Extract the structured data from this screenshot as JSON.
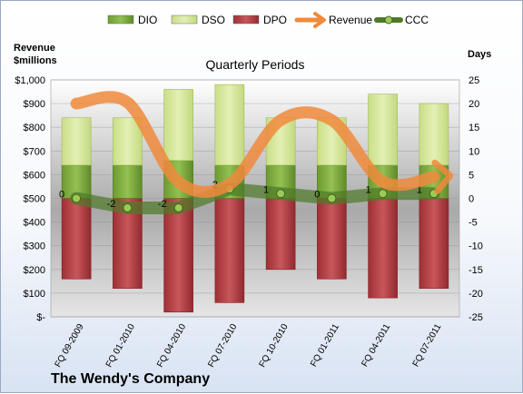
{
  "chart_data": {
    "type": "bar",
    "title": "Quarterly Periods",
    "company": "The Wendy's Company",
    "left_axis_label": [
      "Revenue",
      "$millions"
    ],
    "right_axis_label": "Days",
    "left_ticks": [
      "$1,000",
      "$900",
      "$800",
      "$700",
      "$600",
      "$500",
      "$400",
      "$300",
      "$200",
      "$100",
      "$-"
    ],
    "right_ticks": [
      "25",
      "20",
      "15",
      "10",
      "5",
      "0",
      "-5",
      "-10",
      "-15",
      "-20",
      "-25"
    ],
    "left_ylim": [
      0,
      1000
    ],
    "right_ylim": [
      -25,
      25
    ],
    "categories": [
      "FQ 09-2009",
      "FQ 01-2010",
      "FQ 04-2010",
      "FQ 07-2010",
      "FQ 10-2010",
      "FQ 01-2011",
      "FQ 04-2011",
      "FQ 07-2011"
    ],
    "series": [
      {
        "name": "DIO",
        "axis": "days",
        "values": [
          7,
          7,
          8,
          7,
          7,
          7,
          7,
          7
        ]
      },
      {
        "name": "DSO",
        "axis": "days",
        "values": [
          10,
          10,
          15,
          17,
          10,
          10,
          15,
          13
        ]
      },
      {
        "name": "DPO",
        "axis": "days",
        "values": [
          -17,
          -19,
          -24,
          -22,
          -15,
          -17,
          -21,
          -19
        ]
      },
      {
        "name": "Revenue",
        "axis": "revenue",
        "values": [
          900,
          905,
          570,
          560,
          830,
          830,
          570,
          590
        ]
      },
      {
        "name": "CCC",
        "axis": "days",
        "values": [
          0,
          -2,
          -2,
          2,
          1,
          0,
          1,
          1
        ]
      }
    ],
    "ccc_labels": [
      "0",
      "-2",
      "-2",
      "2",
      "1",
      "0",
      "1",
      "1"
    ],
    "colors": {
      "DIO": "#7aa53c",
      "DSO": "#d4e79a",
      "DPO": "#b23a3f",
      "Revenue": "#f08a3c",
      "CCC": "#4f7a28"
    },
    "legend": {
      "position": "top",
      "items": [
        "DIO",
        "DSO",
        "DPO",
        "Revenue",
        "CCC"
      ]
    },
    "grid": true
  }
}
